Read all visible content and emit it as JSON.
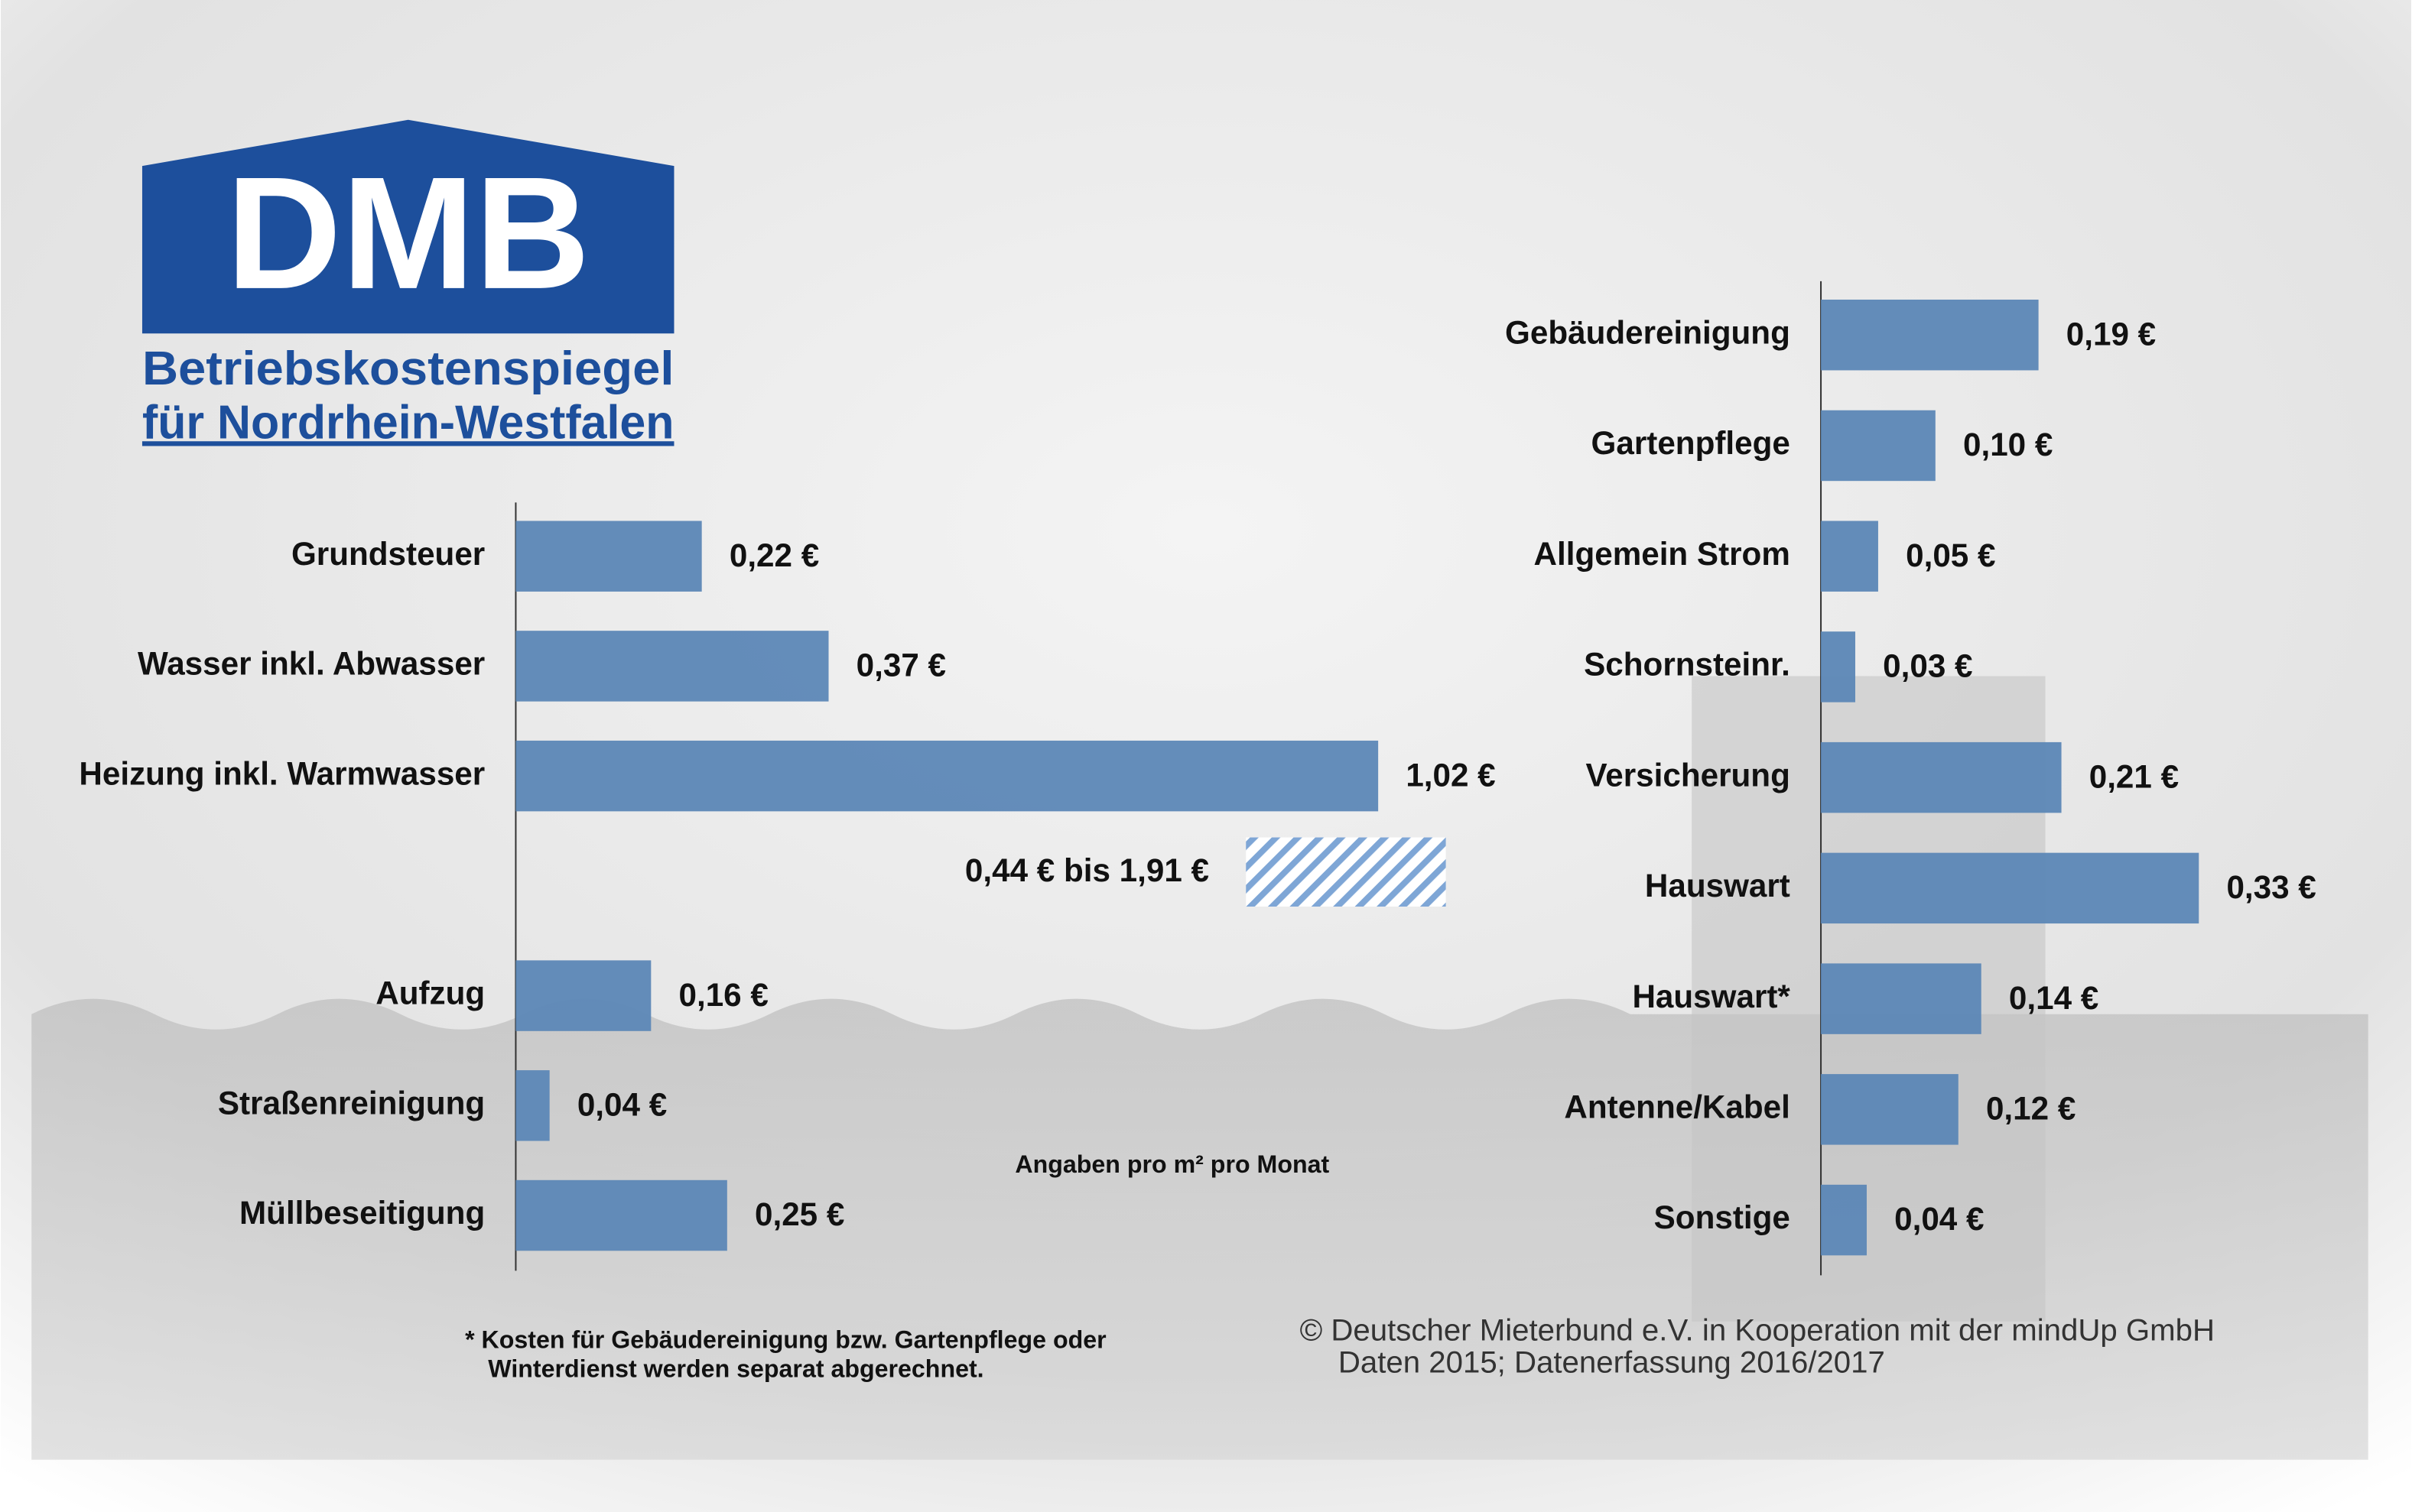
{
  "logo": {
    "title": "DMB",
    "lines": [
      "Betriebskostenspiegel",
      "für Nordrhein-Westfalen"
    ]
  },
  "chart_data": [
    {
      "type": "bar",
      "orientation": "horizontal",
      "color": "#5c87b6",
      "categories": [
        "Grundsteuer",
        "Wasser inkl. Abwasser",
        "Heizung inkl. Warmwasser",
        "Aufzug",
        "Straßenreinigung",
        "Müllbeseitigung"
      ],
      "values": [
        0.22,
        0.37,
        1.02,
        0.16,
        0.04,
        0.25
      ],
      "value_labels": [
        "0,22 €",
        "0,37 €",
        "1,02 €",
        "0,16 €",
        "0,04 €",
        "0,25 €"
      ],
      "xlim": [
        0,
        1.1
      ],
      "annotation": "0,44 € bis 1,91 €"
    },
    {
      "type": "bar",
      "orientation": "horizontal",
      "color": "#5c87b6",
      "categories": [
        "Gebäudereinigung",
        "Gartenpflege",
        "Allgemein Strom",
        "Schornsteinr.",
        "Versicherung",
        "Hauswart",
        "Hauswart*",
        "Antenne/Kabel",
        "Sonstige"
      ],
      "values": [
        0.19,
        0.1,
        0.05,
        0.03,
        0.21,
        0.33,
        0.14,
        0.12,
        0.04
      ],
      "value_labels": [
        "0,19 €",
        "0,10 €",
        "0,05 €",
        "0,03 €",
        "0,21 €",
        "0,33 €",
        "0,14 €",
        "0,12 €",
        "0,04 €"
      ],
      "xlim": [
        0,
        0.4
      ]
    }
  ],
  "unit_note": "Angaben pro m² pro Monat",
  "footnote": [
    "* Kosten für Gebäudereinigung bzw. Gartenpflege oder",
    "Winterdienst werden separat abgerechnet."
  ],
  "credit": [
    "© Deutscher Mieterbund e.V. in Kooperation mit der mindUp GmbH",
    "Daten 2015; Datenerfassung 2016/2017"
  ]
}
